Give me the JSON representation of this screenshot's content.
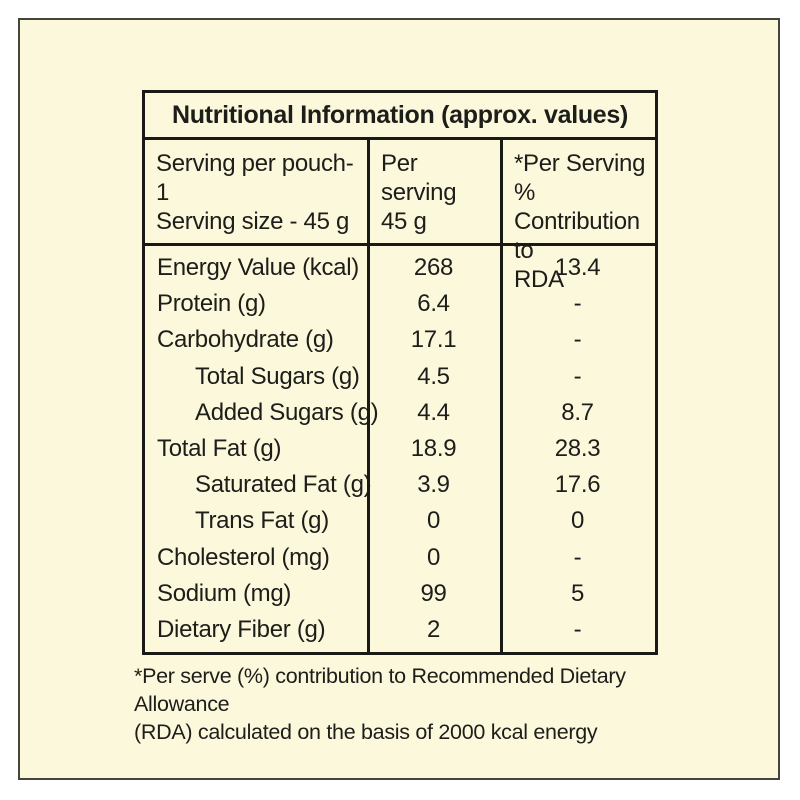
{
  "colors": {
    "page_margin": "#FFFFFF",
    "label_background": "#FCF8DC",
    "outer_frame_border": "#45453E",
    "table_border": "#191915",
    "text": "#1D1D1A"
  },
  "table": {
    "title": "Nutritional Information (approx. values)",
    "header": {
      "col1_line1": "Serving per pouch-1",
      "col1_line2": "Serving size - 45 g",
      "col2_line1": "Per serving",
      "col2_line2": "45 g",
      "col3_line1": "*Per Serving %",
      "col3_line2": "Contribution to",
      "col3_line3": "RDA"
    },
    "rows": [
      {
        "label": "Energy Value (kcal)",
        "per_serving": "268",
        "rda_pct": "13.4",
        "indent": false
      },
      {
        "label": "Protein (g)",
        "per_serving": "6.4",
        "rda_pct": "-",
        "indent": false
      },
      {
        "label": "Carbohydrate (g)",
        "per_serving": "17.1",
        "rda_pct": "-",
        "indent": false
      },
      {
        "label": "Total Sugars (g)",
        "per_serving": "4.5",
        "rda_pct": "-",
        "indent": true
      },
      {
        "label": "Added Sugars (g)",
        "per_serving": "4.4",
        "rda_pct": "8.7",
        "indent": true
      },
      {
        "label": "Total Fat (g)",
        "per_serving": "18.9",
        "rda_pct": "28.3",
        "indent": false
      },
      {
        "label": "Saturated Fat (g)",
        "per_serving": "3.9",
        "rda_pct": "17.6",
        "indent": true
      },
      {
        "label": "Trans Fat (g)",
        "per_serving": "0",
        "rda_pct": "0",
        "indent": true
      },
      {
        "label": "Cholesterol (mg)",
        "per_serving": "0",
        "rda_pct": "-",
        "indent": false
      },
      {
        "label": "Sodium (mg)",
        "per_serving": "99",
        "rda_pct": "5",
        "indent": false
      },
      {
        "label": "Dietary Fiber (g)",
        "per_serving": "2",
        "rda_pct": "-",
        "indent": false
      }
    ],
    "footnote_line1": "*Per serve (%) contribution to Recommended Dietary Allowance",
    "footnote_line2": "(RDA) calculated on the basis of 2000 kcal energy"
  }
}
